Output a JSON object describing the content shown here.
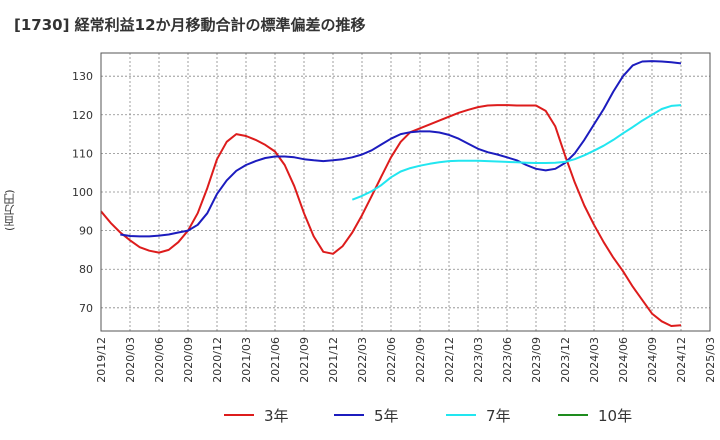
{
  "title": "[1730]  経常利益12か月移動合計の標準偏差の推移",
  "chart_data": {
    "type": "line",
    "title": "[1730]  経常利益12か月移動合計の標準偏差の推移",
    "xlabel": "",
    "ylabel": "(百万円)",
    "ylim": [
      64,
      136
    ],
    "yticks": [
      70,
      80,
      90,
      100,
      110,
      120,
      130
    ],
    "grid": true,
    "legend_position": "bottom",
    "x_tick_labels": [
      "2019/12",
      "2020/03",
      "2020/06",
      "2020/09",
      "2020/12",
      "2021/03",
      "2021/06",
      "2021/09",
      "2021/12",
      "2022/03",
      "2022/06",
      "2022/09",
      "2022/12",
      "2023/03",
      "2023/06",
      "2023/09",
      "2023/12",
      "2024/03",
      "2024/06",
      "2024/09",
      "2024/12",
      "2025/03"
    ],
    "series": [
      {
        "name": "3年",
        "color": "#dd1c1c",
        "x": [
          "2019/12",
          "2020/01",
          "2020/02",
          "2020/03",
          "2020/04",
          "2020/05",
          "2020/06",
          "2020/07",
          "2020/08",
          "2020/09",
          "2020/10",
          "2020/11",
          "2020/12",
          "2021/01",
          "2021/02",
          "2021/03",
          "2021/04",
          "2021/05",
          "2021/06",
          "2021/07",
          "2021/08",
          "2021/09",
          "2021/10",
          "2021/11",
          "2021/12",
          "2022/01",
          "2022/02",
          "2022/03",
          "2022/04",
          "2022/05",
          "2022/06",
          "2022/07",
          "2022/08",
          "2022/09",
          "2022/10",
          "2022/11",
          "2022/12",
          "2023/01",
          "2023/02",
          "2023/03",
          "2023/04",
          "2023/05",
          "2023/06",
          "2023/07",
          "2023/08",
          "2023/09",
          "2023/10",
          "2023/11",
          "2023/12",
          "2024/01",
          "2024/02",
          "2024/03",
          "2024/04",
          "2024/05",
          "2024/06",
          "2024/07",
          "2024/08",
          "2024/09",
          "2024/10",
          "2024/11",
          "2024/12"
        ],
        "values": [
          95,
          92,
          89.5,
          87.5,
          85.7,
          84.8,
          84.3,
          85,
          87,
          90,
          94.5,
          101,
          108.5,
          113,
          115,
          114.5,
          113.5,
          112.2,
          110.5,
          107,
          101.5,
          94.5,
          88.5,
          84.5,
          84,
          86,
          89.5,
          94,
          99,
          104,
          109,
          113,
          115.5,
          116.5,
          117.5,
          118.5,
          119.5,
          120.5,
          121.3,
          122,
          122.4,
          122.5,
          122.5,
          122.4,
          122.4,
          122.4,
          121,
          117,
          109.5,
          102.5,
          96.5,
          91.5,
          87,
          83,
          79.5,
          75.5,
          72,
          68.5,
          66.5,
          65.3,
          65.5
        ]
      },
      {
        "name": "5年",
        "color": "#1c1cbe",
        "x": [
          "2020/02",
          "2020/03",
          "2020/04",
          "2020/05",
          "2020/06",
          "2020/07",
          "2020/08",
          "2020/09",
          "2020/10",
          "2020/11",
          "2020/12",
          "2021/01",
          "2021/02",
          "2021/03",
          "2021/04",
          "2021/05",
          "2021/06",
          "2021/07",
          "2021/08",
          "2021/09",
          "2021/10",
          "2021/11",
          "2021/12",
          "2022/01",
          "2022/02",
          "2022/03",
          "2022/04",
          "2022/05",
          "2022/06",
          "2022/07",
          "2022/08",
          "2022/09",
          "2022/10",
          "2022/11",
          "2022/12",
          "2023/01",
          "2023/02",
          "2023/03",
          "2023/04",
          "2023/05",
          "2023/06",
          "2023/07",
          "2023/08",
          "2023/09",
          "2023/10",
          "2023/11",
          "2023/12",
          "2024/01",
          "2024/02",
          "2024/03",
          "2024/04",
          "2024/05",
          "2024/06",
          "2024/07",
          "2024/08",
          "2024/09",
          "2024/10",
          "2024/11",
          "2024/12"
        ],
        "values": [
          89,
          88.6,
          88.5,
          88.5,
          88.7,
          89,
          89.5,
          90,
          91.5,
          94.5,
          99.5,
          103,
          105.5,
          107,
          108,
          108.8,
          109.2,
          109.2,
          109,
          108.5,
          108.2,
          108,
          108.2,
          108.5,
          109,
          109.7,
          110.8,
          112.3,
          113.8,
          115,
          115.5,
          115.7,
          115.7,
          115.4,
          114.8,
          113.8,
          112.5,
          111.2,
          110.3,
          109.7,
          109,
          108.2,
          107,
          106,
          105.6,
          106,
          107.5,
          110,
          113.5,
          117.5,
          121.5,
          126,
          130,
          132.8,
          133.8,
          133.9,
          133.8,
          133.6,
          133.3
        ]
      },
      {
        "name": "7年",
        "color": "#22e6f0",
        "x": [
          "2022/02",
          "2022/03",
          "2022/04",
          "2022/05",
          "2022/06",
          "2022/07",
          "2022/08",
          "2022/09",
          "2022/10",
          "2022/11",
          "2022/12",
          "2023/01",
          "2023/02",
          "2023/03",
          "2023/04",
          "2023/05",
          "2023/06",
          "2023/07",
          "2023/08",
          "2023/09",
          "2023/10",
          "2023/11",
          "2023/12",
          "2024/01",
          "2024/02",
          "2024/03",
          "2024/04",
          "2024/05",
          "2024/06",
          "2024/07",
          "2024/08",
          "2024/09",
          "2024/10",
          "2024/11",
          "2024/12"
        ],
        "values": [
          98,
          99,
          100.2,
          101.8,
          103.8,
          105.3,
          106.2,
          106.8,
          107.3,
          107.7,
          108,
          108.1,
          108.1,
          108.1,
          108,
          107.9,
          107.8,
          107.7,
          107.6,
          107.5,
          107.5,
          107.6,
          107.8,
          108.5,
          109.5,
          110.7,
          112,
          113.5,
          115.2,
          116.8,
          118.5,
          120,
          121.5,
          122.3,
          122.5
        ]
      },
      {
        "name": "10年",
        "color": "#1e8c1e",
        "x": [],
        "values": []
      }
    ]
  }
}
